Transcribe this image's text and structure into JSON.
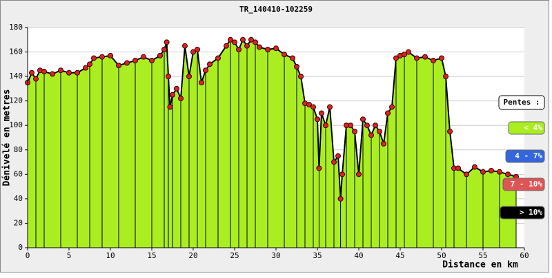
{
  "chart_data": {
    "type": "area",
    "title": "TR_140410-102259",
    "x_label": "Distance en km",
    "y_label": "Dénivelé en metres",
    "x": [
      0,
      0.5,
      1,
      1.5,
      2,
      3,
      4,
      5,
      6,
      7,
      7.5,
      8,
      9,
      10,
      11,
      12,
      13,
      14,
      15,
      16,
      16.5,
      16.8,
      17,
      17.2,
      17.5,
      18,
      18.5,
      19,
      19.5,
      20,
      20.5,
      21,
      21.5,
      22,
      23,
      24,
      24.5,
      25,
      25.5,
      26,
      26.5,
      27,
      27.5,
      28,
      29,
      30,
      31,
      32,
      32.5,
      33,
      33.5,
      34,
      34.5,
      35,
      35.2,
      35.5,
      36,
      36.5,
      37,
      37.5,
      37.8,
      38,
      38.5,
      39,
      39.5,
      40,
      40.5,
      41,
      41.5,
      42,
      42.5,
      43,
      43.5,
      44,
      44.5,
      45,
      45.5,
      46,
      47,
      48,
      49,
      50,
      50.5,
      51,
      51.5,
      52,
      53,
      54,
      55,
      56,
      57,
      58,
      59
    ],
    "values": [
      135,
      143,
      138,
      145,
      144,
      142,
      145,
      143,
      143,
      147,
      150,
      155,
      156,
      157,
      149,
      151,
      153,
      156,
      153,
      157,
      162,
      168,
      140,
      115,
      125,
      130,
      122,
      165,
      140,
      160,
      162,
      135,
      145,
      150,
      155,
      165,
      170,
      168,
      162,
      170,
      165,
      170,
      168,
      164,
      162,
      163,
      158,
      155,
      148,
      140,
      118,
      117,
      115,
      105,
      65,
      110,
      100,
      115,
      70,
      75,
      40,
      60,
      100,
      100,
      95,
      60,
      105,
      100,
      92,
      100,
      95,
      85,
      110,
      115,
      155,
      157,
      158,
      160,
      155,
      156,
      153,
      155,
      140,
      95,
      65,
      65,
      60,
      66,
      62,
      63,
      62,
      60,
      58
    ],
    "color": "#aaee22",
    "line_color": "#000000",
    "marker_color": "#dd2222",
    "xlim": [
      0,
      60
    ],
    "xticks": [
      0,
      5,
      10,
      15,
      20,
      25,
      30,
      35,
      40,
      45,
      50,
      55,
      60
    ],
    "ylim": [
      0,
      180
    ],
    "yticks": [
      0,
      20,
      40,
      60,
      80,
      100,
      120,
      140,
      160,
      180
    ],
    "grid": true,
    "legend_title": "Pentes :",
    "legend": [
      {
        "name": "< 4%",
        "color": "#aaee22"
      },
      {
        "name": "4 - 7%",
        "color": "#3366dd"
      },
      {
        "name": "7 - 10%",
        "color": "#dd5555"
      },
      {
        "name": "> 10%",
        "color": "#000000"
      }
    ]
  }
}
